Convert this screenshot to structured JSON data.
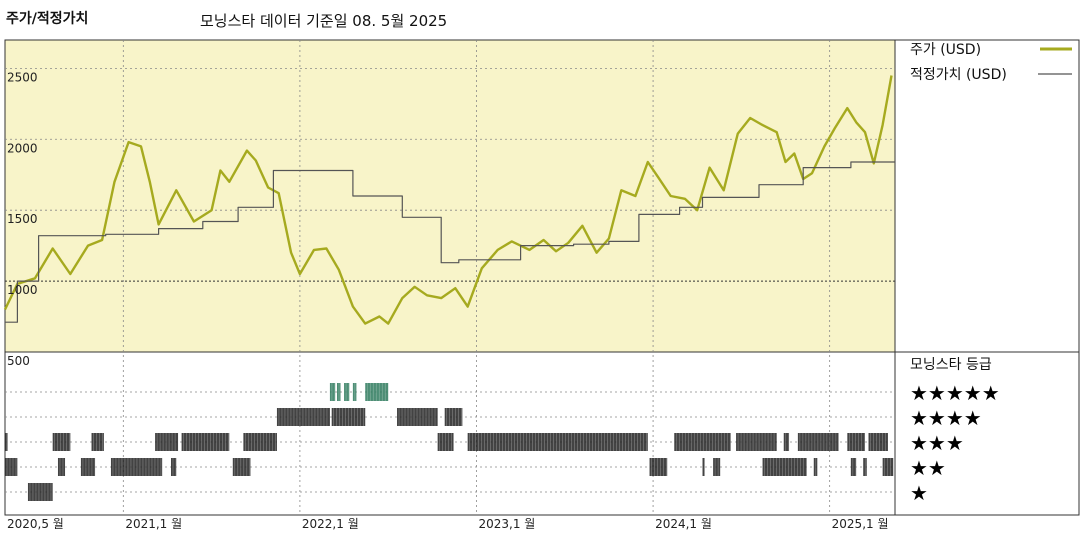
{
  "header": {
    "title": "주가/적정가치",
    "subtitle": "모닝스타 데이터 기준일 08. 5월 2025"
  },
  "legend": {
    "price_label": "주가 (USD)",
    "fair_label": "적정가치 (USD)",
    "rating_title": "모닝스타 등급"
  },
  "colors": {
    "price": "#a6aa1f",
    "fair": "#555555",
    "panel_bg": "#f8f4c9",
    "grid": "#888888",
    "five_star": "#2e7a5d",
    "bar": "#222222"
  },
  "chart_data": {
    "type": "line",
    "title": "주가/적정가치",
    "x_labels": [
      "2020,5 월",
      "2021,1 월",
      "2022,1 월",
      "2023,1 월",
      "2024,1 월",
      "2025,1 월"
    ],
    "x_label_dates": [
      2020.33,
      2021.0,
      2022.0,
      2023.0,
      2024.0,
      2025.0
    ],
    "xlim": [
      2020.33,
      2025.37
    ],
    "ylim": [
      500,
      2700
    ],
    "y_ticks": [
      "2500",
      "2000",
      "1500",
      "1000",
      "500"
    ],
    "y_tick_values": [
      2500,
      2000,
      1500,
      1000,
      500
    ],
    "series": [
      {
        "name": "주가 (USD)",
        "points": [
          [
            2020.33,
            800
          ],
          [
            2020.4,
            980
          ],
          [
            2020.5,
            1020
          ],
          [
            2020.6,
            1230
          ],
          [
            2020.7,
            1050
          ],
          [
            2020.8,
            1250
          ],
          [
            2020.88,
            1290
          ],
          [
            2020.95,
            1700
          ],
          [
            2021.03,
            1980
          ],
          [
            2021.1,
            1950
          ],
          [
            2021.15,
            1700
          ],
          [
            2021.2,
            1400
          ],
          [
            2021.3,
            1640
          ],
          [
            2021.4,
            1420
          ],
          [
            2021.5,
            1500
          ],
          [
            2021.55,
            1780
          ],
          [
            2021.6,
            1700
          ],
          [
            2021.7,
            1920
          ],
          [
            2021.75,
            1850
          ],
          [
            2021.82,
            1660
          ],
          [
            2021.88,
            1620
          ],
          [
            2021.95,
            1200
          ],
          [
            2022.0,
            1050
          ],
          [
            2022.08,
            1220
          ],
          [
            2022.15,
            1230
          ],
          [
            2022.22,
            1080
          ],
          [
            2022.3,
            820
          ],
          [
            2022.37,
            700
          ],
          [
            2022.45,
            750
          ],
          [
            2022.5,
            700
          ],
          [
            2022.58,
            880
          ],
          [
            2022.65,
            960
          ],
          [
            2022.72,
            900
          ],
          [
            2022.8,
            880
          ],
          [
            2022.88,
            950
          ],
          [
            2022.95,
            820
          ],
          [
            2023.03,
            1090
          ],
          [
            2023.12,
            1220
          ],
          [
            2023.2,
            1280
          ],
          [
            2023.3,
            1220
          ],
          [
            2023.38,
            1290
          ],
          [
            2023.45,
            1210
          ],
          [
            2023.52,
            1270
          ],
          [
            2023.6,
            1390
          ],
          [
            2023.68,
            1200
          ],
          [
            2023.75,
            1300
          ],
          [
            2023.82,
            1640
          ],
          [
            2023.9,
            1600
          ],
          [
            2023.97,
            1840
          ],
          [
            2024.03,
            1730
          ],
          [
            2024.1,
            1600
          ],
          [
            2024.18,
            1580
          ],
          [
            2024.25,
            1500
          ],
          [
            2024.32,
            1800
          ],
          [
            2024.4,
            1640
          ],
          [
            2024.48,
            2040
          ],
          [
            2024.55,
            2150
          ],
          [
            2024.62,
            2100
          ],
          [
            2024.7,
            2050
          ],
          [
            2024.75,
            1840
          ],
          [
            2024.8,
            1900
          ],
          [
            2024.85,
            1720
          ],
          [
            2024.9,
            1760
          ],
          [
            2024.97,
            1950
          ],
          [
            2025.03,
            2080
          ],
          [
            2025.1,
            2220
          ],
          [
            2025.15,
            2120
          ],
          [
            2025.2,
            2050
          ],
          [
            2025.25,
            1830
          ],
          [
            2025.3,
            2100
          ],
          [
            2025.35,
            2450
          ]
        ]
      },
      {
        "name": "적정가치 (USD)",
        "points": [
          [
            2020.33,
            710
          ],
          [
            2020.4,
            710
          ],
          [
            2020.4,
            1000
          ],
          [
            2020.52,
            1000
          ],
          [
            2020.52,
            1320
          ],
          [
            2020.9,
            1320
          ],
          [
            2020.9,
            1330
          ],
          [
            2021.2,
            1330
          ],
          [
            2021.2,
            1370
          ],
          [
            2021.45,
            1370
          ],
          [
            2021.45,
            1420
          ],
          [
            2021.65,
            1420
          ],
          [
            2021.65,
            1520
          ],
          [
            2021.85,
            1520
          ],
          [
            2021.85,
            1780
          ],
          [
            2022.3,
            1780
          ],
          [
            2022.3,
            1600
          ],
          [
            2022.58,
            1600
          ],
          [
            2022.58,
            1450
          ],
          [
            2022.8,
            1450
          ],
          [
            2022.8,
            1130
          ],
          [
            2022.9,
            1130
          ],
          [
            2022.9,
            1150
          ],
          [
            2023.25,
            1150
          ],
          [
            2023.25,
            1250
          ],
          [
            2023.55,
            1250
          ],
          [
            2023.55,
            1260
          ],
          [
            2023.75,
            1260
          ],
          [
            2023.75,
            1280
          ],
          [
            2023.92,
            1280
          ],
          [
            2023.92,
            1470
          ],
          [
            2024.15,
            1470
          ],
          [
            2024.15,
            1520
          ],
          [
            2024.28,
            1520
          ],
          [
            2024.28,
            1590
          ],
          [
            2024.6,
            1590
          ],
          [
            2024.6,
            1680
          ],
          [
            2024.85,
            1680
          ],
          [
            2024.85,
            1800
          ],
          [
            2025.12,
            1800
          ],
          [
            2025.12,
            1840
          ],
          [
            2025.37,
            1840
          ]
        ]
      }
    ],
    "rating_rows": [
      "★★★★★",
      "★★★★",
      "★★★",
      "★★",
      "★"
    ],
    "rating_bands": [
      {
        "row": 0,
        "ranges": [
          [
            2022.17,
            2022.2
          ],
          [
            2022.21,
            2022.23
          ],
          [
            2022.25,
            2022.28
          ],
          [
            2022.3,
            2022.32
          ],
          [
            2022.37,
            2022.5
          ]
        ]
      },
      {
        "row": 1,
        "ranges": [
          [
            2021.87,
            2022.17
          ],
          [
            2022.18,
            2022.37
          ],
          [
            2022.55,
            2022.78
          ],
          [
            2022.82,
            2022.92
          ]
        ]
      },
      {
        "row": 2,
        "ranges": [
          [
            2020.33,
            2020.345
          ],
          [
            2020.6,
            2020.7
          ],
          [
            2020.82,
            2020.89
          ],
          [
            2021.18,
            2021.31
          ],
          [
            2021.33,
            2021.6
          ],
          [
            2021.68,
            2021.87
          ],
          [
            2022.78,
            2022.87
          ],
          [
            2022.95,
            2023.97
          ],
          [
            2024.12,
            2024.44
          ],
          [
            2024.47,
            2024.7
          ],
          [
            2024.74,
            2024.77
          ],
          [
            2024.82,
            2025.05
          ],
          [
            2025.1,
            2025.2
          ],
          [
            2025.22,
            2025.33
          ]
        ]
      },
      {
        "row": 3,
        "ranges": [
          [
            2020.33,
            2020.4
          ],
          [
            2020.63,
            2020.67
          ],
          [
            2020.76,
            2020.84
          ],
          [
            2020.93,
            2021.22
          ],
          [
            2021.27,
            2021.3
          ],
          [
            2021.62,
            2021.72
          ],
          [
            2023.98,
            2024.08
          ],
          [
            2024.28,
            2024.29
          ],
          [
            2024.34,
            2024.38
          ],
          [
            2024.62,
            2024.87
          ],
          [
            2024.91,
            2024.93
          ],
          [
            2025.12,
            2025.15
          ],
          [
            2025.19,
            2025.21
          ],
          [
            2025.3,
            2025.36
          ]
        ]
      },
      {
        "row": 4,
        "ranges": [
          [
            2020.46,
            2020.6
          ]
        ]
      }
    ]
  }
}
